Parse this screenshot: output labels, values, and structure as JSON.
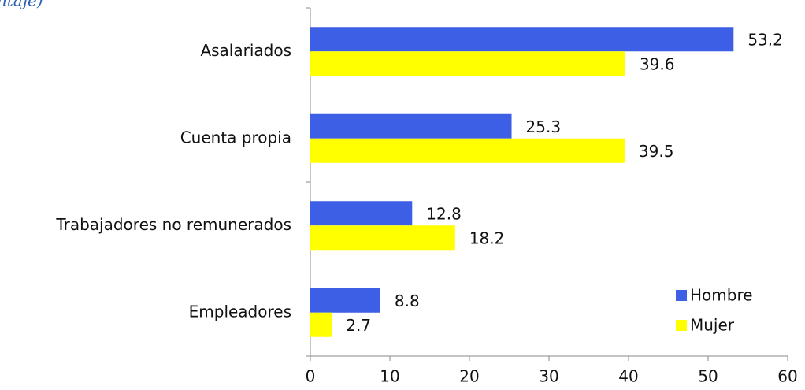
{
  "chart_data": {
    "type": "bar",
    "orientation": "horizontal",
    "title": "ntaje)",
    "categories": [
      "Asalariados",
      "Cuenta propia",
      "Trabajadores no remunerados",
      "Empleadores"
    ],
    "series": [
      {
        "name": "Hombre",
        "color": "#3c5fe6",
        "values": [
          53.2,
          25.3,
          12.8,
          8.8
        ]
      },
      {
        "name": "Mujer",
        "color": "#ffff00",
        "values": [
          39.6,
          39.5,
          18.2,
          2.7
        ]
      }
    ],
    "xlim": [
      0,
      60
    ],
    "xticks": [
      0,
      10,
      20,
      30,
      40,
      50,
      60
    ],
    "legend": "lower right"
  }
}
